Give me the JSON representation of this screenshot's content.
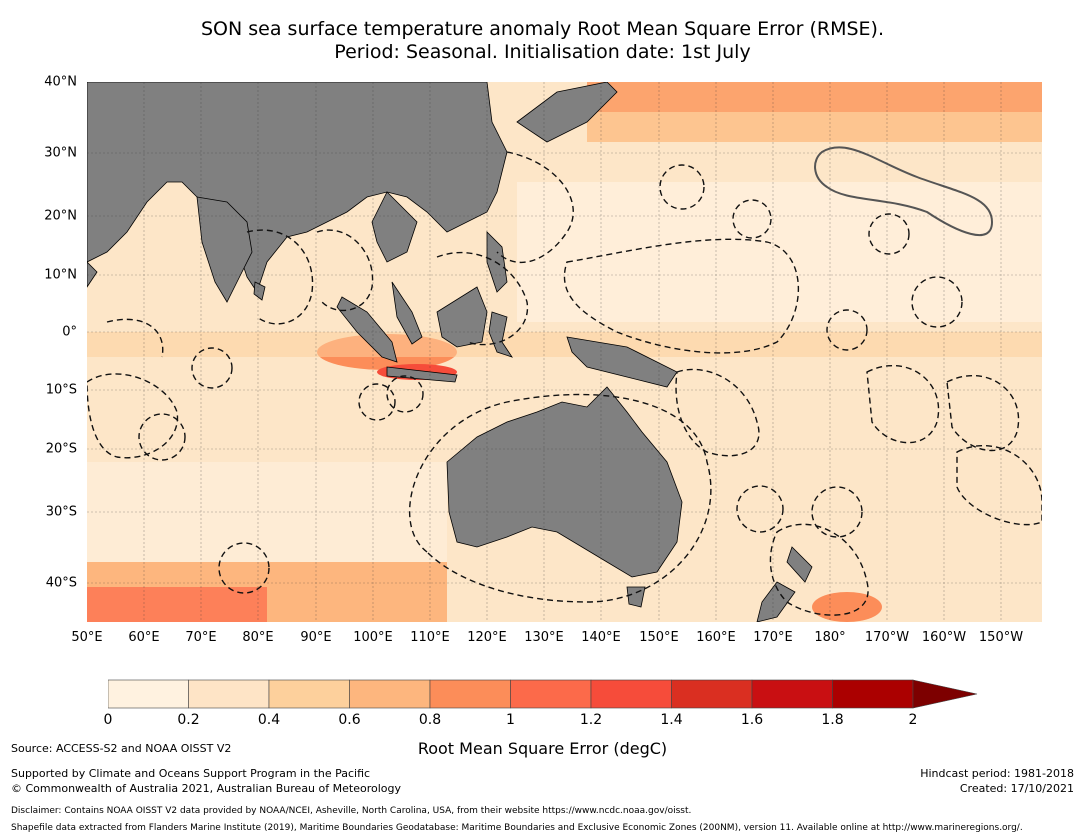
{
  "title_line1": "SON sea surface temperature anomaly Root Mean Square Error (RMSE).",
  "title_line2": "Period: Seasonal. Initialisation date: 1st July",
  "lat_labels": [
    "40°N",
    "30°N",
    "20°N",
    "10°N",
    "0°",
    "10°S",
    "20°S",
    "30°S",
    "40°S"
  ],
  "lon_labels": [
    "50°E",
    "60°E",
    "70°E",
    "80°E",
    "90°E",
    "100°E",
    "110°E",
    "120°E",
    "130°E",
    "140°E",
    "150°E",
    "160°E",
    "170°E",
    "180°",
    "170°W",
    "160°W",
    "150°W"
  ],
  "colorbar": {
    "label": "Root Mean Square Error (degC)",
    "ticks": [
      "0",
      "0.2",
      "0.4",
      "0.6",
      "0.8",
      "1",
      "1.2",
      "1.4",
      "1.6",
      "1.8",
      "2"
    ],
    "colors": [
      "#fff2e0",
      "#fee4c6",
      "#fdd09c",
      "#fdb67e",
      "#fc8d59",
      "#fc6a4a",
      "#f64c3a",
      "#da2f21",
      "#c90f12",
      "#ab0000",
      "#7d0000"
    ]
  },
  "colors": {
    "land": "#808080",
    "ocean_base": "#fde6c8"
  },
  "source": "Source: ACCESS-S2 and NOAA OISST V2",
  "supported": "Supported by Climate and Oceans Support Program in the Pacific",
  "copyright": "© Commonwealth of Australia 2021, Australian Bureau of Meteorology",
  "hindcast": "Hindcast period: 1981-2018",
  "created": "Created: 17/10/2021",
  "disclaimer": "Disclaimer: Contains NOAA OISST V2 data provided by NOAA/NCEI, Asheville, North Carolina, USA, from their website https://www.ncdc.noaa.gov/oisst.",
  "shapefile": "Shapefile data extracted from Flanders Marine Institute (2019), Maritime Boundaries Geodatabase: Maritime Boundaries and Exclusive Economic Zones (200NM), version 11. Available online at http://www.marineregions.org/."
}
